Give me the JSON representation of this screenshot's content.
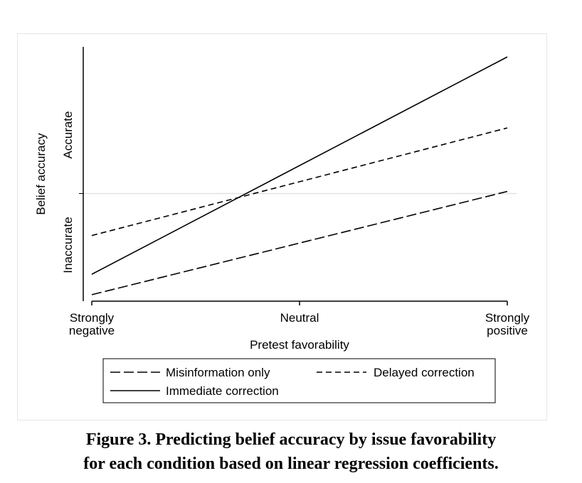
{
  "chart_data": {
    "type": "line",
    "xlabel": "Pretest favorability",
    "ylabel": "Belief accuracy",
    "x_tick_labels": [
      {
        "x": 0,
        "lines": [
          "Strongly",
          "negative"
        ]
      },
      {
        "x": 1,
        "lines": [
          "Neutral"
        ]
      },
      {
        "x": 2,
        "lines": [
          "Strongly",
          "positive"
        ]
      }
    ],
    "y_region_labels": [
      {
        "text": "Accurate"
      },
      {
        "text": "Inaccurate"
      }
    ],
    "reference_line_y": 0,
    "xlim": [
      0,
      2
    ],
    "ylim": [
      -1.0,
      1.35
    ],
    "grid": false,
    "legend_position": "bottom",
    "series": [
      {
        "name": "Misinformation only",
        "style": "longdash",
        "x": [
          0,
          2
        ],
        "y": [
          -0.94,
          0.02
        ]
      },
      {
        "name": "Delayed correction",
        "style": "shortdash",
        "x": [
          0,
          2
        ],
        "y": [
          -0.39,
          0.61
        ]
      },
      {
        "name": "Immediate correction",
        "style": "solid",
        "x": [
          0,
          2
        ],
        "y": [
          -0.75,
          1.27
        ]
      }
    ]
  },
  "caption": {
    "line1": "Figure 3. Predicting belief accuracy by issue favorability",
    "line2": "for each condition based on linear regression coefficients."
  }
}
